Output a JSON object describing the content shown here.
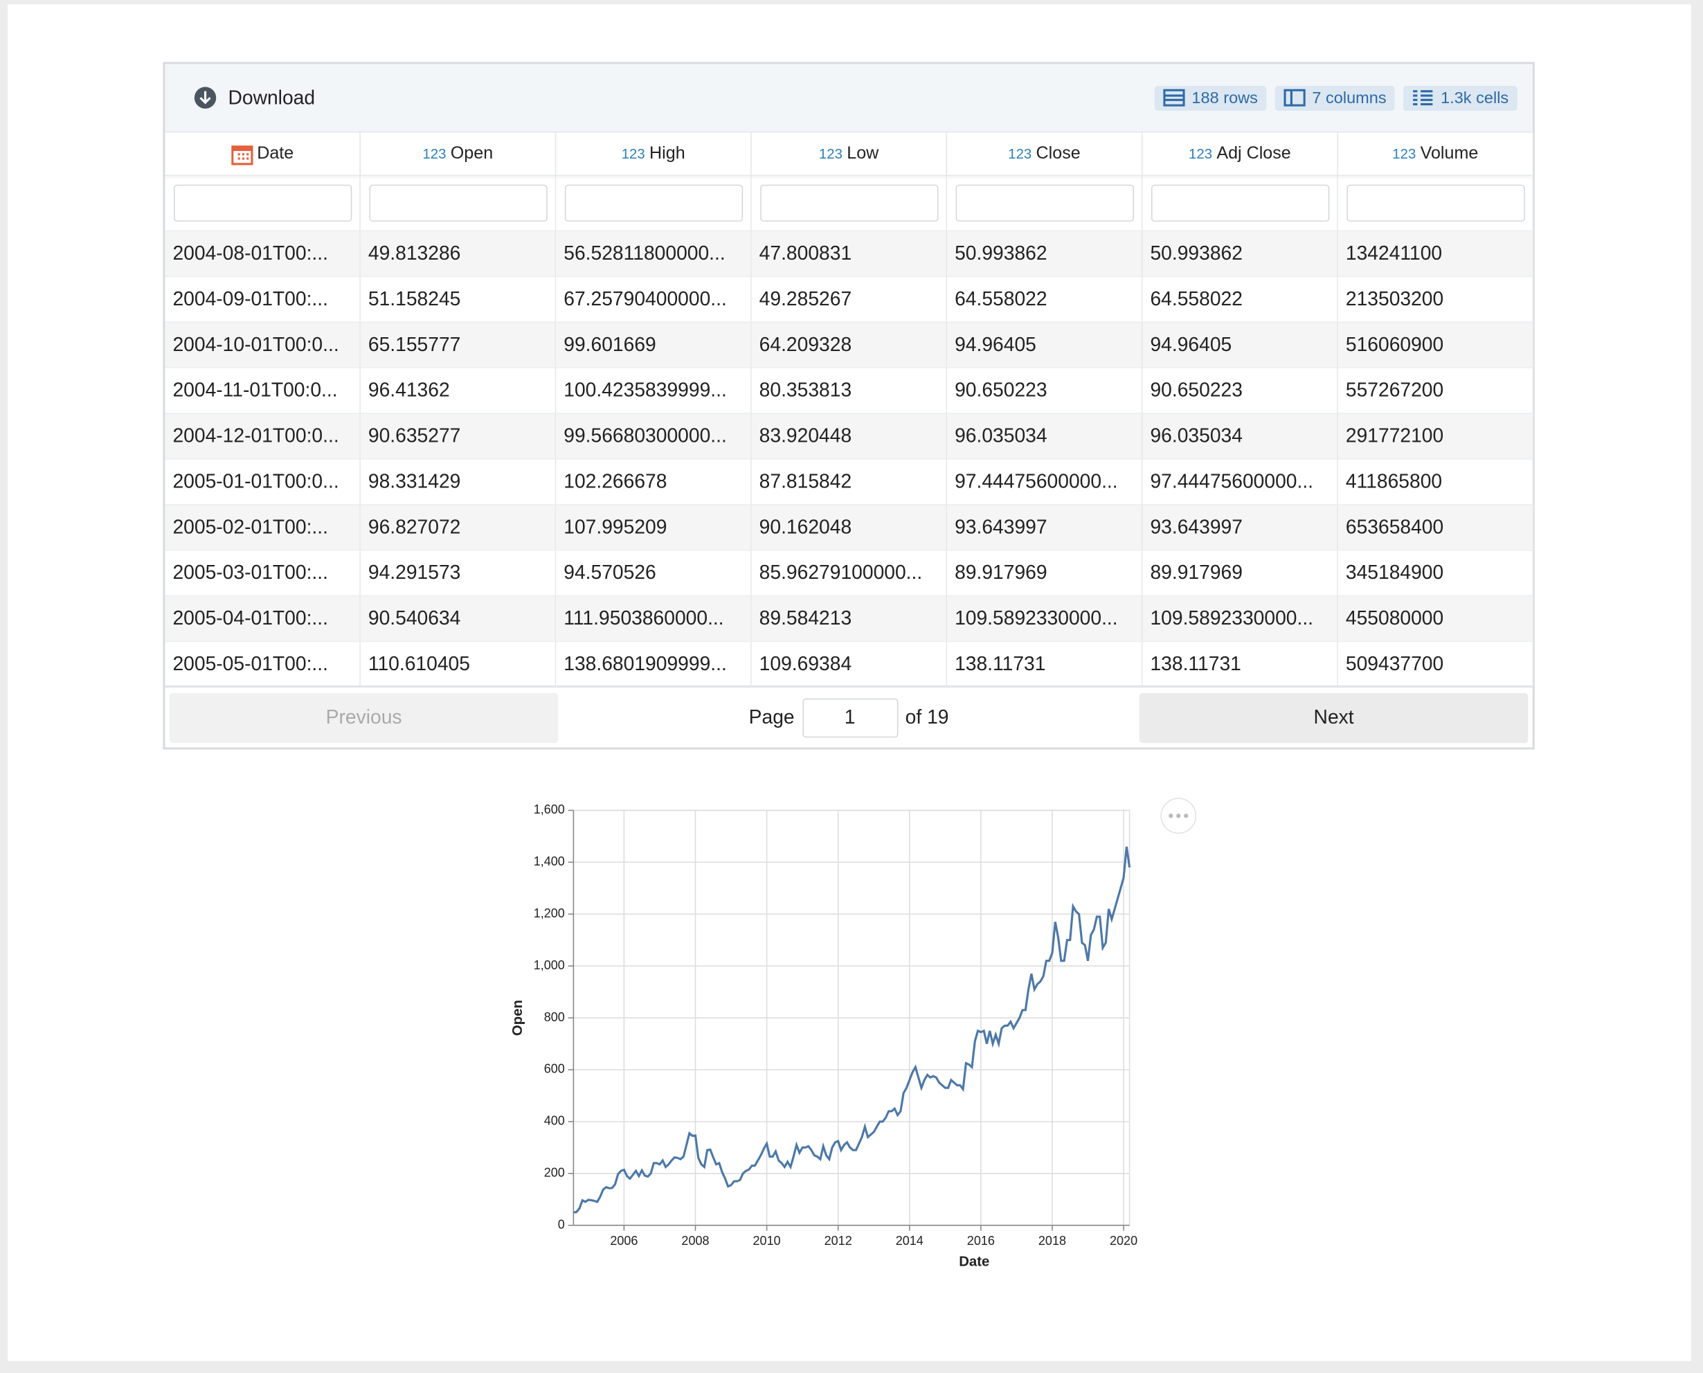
{
  "toolbar": {
    "download": "Download",
    "rows": "188 rows",
    "columns": "7 columns",
    "cells": "1.3k cells"
  },
  "table": {
    "number_icon": "123",
    "columns": [
      "Date",
      "Open",
      "High",
      "Low",
      "Close",
      "Adj Close",
      "Volume"
    ],
    "rows": [
      [
        "2004-08-01T00:...",
        "49.813286",
        "56.52811800000...",
        "47.800831",
        "50.993862",
        "50.993862",
        "134241100"
      ],
      [
        "2004-09-01T00:...",
        "51.158245",
        "67.25790400000...",
        "49.285267",
        "64.558022",
        "64.558022",
        "213503200"
      ],
      [
        "2004-10-01T00:0...",
        "65.155777",
        "99.601669",
        "64.209328",
        "94.96405",
        "94.96405",
        "516060900"
      ],
      [
        "2004-11-01T00:0...",
        "96.41362",
        "100.4235839999...",
        "80.353813",
        "90.650223",
        "90.650223",
        "557267200"
      ],
      [
        "2004-12-01T00:0...",
        "90.635277",
        "99.56680300000...",
        "83.920448",
        "96.035034",
        "96.035034",
        "291772100"
      ],
      [
        "2005-01-01T00:0...",
        "98.331429",
        "102.266678",
        "87.815842",
        "97.44475600000...",
        "97.44475600000...",
        "411865800"
      ],
      [
        "2005-02-01T00:...",
        "96.827072",
        "107.995209",
        "90.162048",
        "93.643997",
        "93.643997",
        "653658400"
      ],
      [
        "2005-03-01T00:...",
        "94.291573",
        "94.570526",
        "85.96279100000...",
        "89.917969",
        "89.917969",
        "345184900"
      ],
      [
        "2005-04-01T00:...",
        "90.540634",
        "111.9503860000...",
        "89.584213",
        "109.5892330000...",
        "109.5892330000...",
        "455080000"
      ],
      [
        "2005-05-01T00:...",
        "110.610405",
        "138.6801909999...",
        "109.69384",
        "138.11731",
        "138.11731",
        "509437700"
      ]
    ]
  },
  "pagination": {
    "previous": "Previous",
    "page_label": "Page",
    "page": 1,
    "of": "of 19",
    "next": "Next"
  },
  "chart_data": {
    "type": "line",
    "xlabel": "Date",
    "ylabel": "Open",
    "color": "#4c78a8",
    "grid": true,
    "x": [
      "2004-08",
      "2004-09",
      "2004-10",
      "2004-11",
      "2004-12",
      "2005-01",
      "2005-02",
      "2005-03",
      "2005-04",
      "2005-05",
      "2005-06",
      "2005-07",
      "2005-08",
      "2005-09",
      "2005-10",
      "2005-11",
      "2005-12",
      "2006-01",
      "2006-02",
      "2006-03",
      "2006-04",
      "2006-05",
      "2006-06",
      "2006-07",
      "2006-08",
      "2006-09",
      "2006-10",
      "2006-11",
      "2006-12",
      "2007-01",
      "2007-02",
      "2007-03",
      "2007-04",
      "2007-05",
      "2007-06",
      "2007-07",
      "2007-08",
      "2007-09",
      "2007-10",
      "2007-11",
      "2007-12",
      "2008-01",
      "2008-02",
      "2008-03",
      "2008-04",
      "2008-05",
      "2008-06",
      "2008-07",
      "2008-08",
      "2008-09",
      "2008-10",
      "2008-11",
      "2008-12",
      "2009-01",
      "2009-02",
      "2009-03",
      "2009-04",
      "2009-05",
      "2009-06",
      "2009-07",
      "2009-08",
      "2009-09",
      "2009-10",
      "2009-11",
      "2009-12",
      "2010-01",
      "2010-02",
      "2010-03",
      "2010-04",
      "2010-05",
      "2010-06",
      "2010-07",
      "2010-08",
      "2010-09",
      "2010-10",
      "2010-11",
      "2010-12",
      "2011-01",
      "2011-02",
      "2011-03",
      "2011-04",
      "2011-05",
      "2011-06",
      "2011-07",
      "2011-08",
      "2011-09",
      "2011-10",
      "2011-11",
      "2011-12",
      "2012-01",
      "2012-02",
      "2012-03",
      "2012-04",
      "2012-05",
      "2012-06",
      "2012-07",
      "2012-08",
      "2012-09",
      "2012-10",
      "2012-11",
      "2012-12",
      "2013-01",
      "2013-02",
      "2013-03",
      "2013-04",
      "2013-05",
      "2013-06",
      "2013-07",
      "2013-08",
      "2013-09",
      "2013-10",
      "2013-11",
      "2013-12",
      "2014-01",
      "2014-02",
      "2014-03",
      "2014-04",
      "2014-05",
      "2014-06",
      "2014-07",
      "2014-08",
      "2014-09",
      "2014-10",
      "2014-11",
      "2014-12",
      "2015-01",
      "2015-02",
      "2015-03",
      "2015-04",
      "2015-05",
      "2015-06",
      "2015-07",
      "2015-08",
      "2015-09",
      "2015-10",
      "2015-11",
      "2015-12",
      "2016-01",
      "2016-02",
      "2016-03",
      "2016-04",
      "2016-05",
      "2016-06",
      "2016-07",
      "2016-08",
      "2016-09",
      "2016-10",
      "2016-11",
      "2016-12",
      "2017-01",
      "2017-02",
      "2017-03",
      "2017-04",
      "2017-05",
      "2017-06",
      "2017-07",
      "2017-08",
      "2017-09",
      "2017-10",
      "2017-11",
      "2017-12",
      "2018-01",
      "2018-02",
      "2018-03",
      "2018-04",
      "2018-05",
      "2018-06",
      "2018-07",
      "2018-08",
      "2018-09",
      "2018-10",
      "2018-11",
      "2018-12",
      "2019-01",
      "2019-02",
      "2019-03",
      "2019-04",
      "2019-05",
      "2019-06",
      "2019-07",
      "2019-08",
      "2019-09",
      "2019-10",
      "2019-11",
      "2019-12",
      "2020-01",
      "2020-02",
      "2020-03"
    ],
    "values": [
      49.8,
      51.2,
      65.2,
      96.4,
      90.6,
      98.3,
      96.8,
      94.3,
      90.5,
      110.6,
      138,
      147,
      143,
      144,
      158,
      198,
      210,
      214,
      190,
      180,
      195,
      210,
      190,
      212,
      192,
      188,
      200,
      240,
      240,
      235,
      250,
      225,
      235,
      250,
      262,
      260,
      255,
      265,
      310,
      355,
      345,
      346,
      260,
      235,
      225,
      290,
      292,
      262,
      235,
      240,
      205,
      180,
      150,
      155,
      170,
      170,
      175,
      200,
      210,
      215,
      230,
      230,
      250,
      270,
      295,
      315,
      265,
      265,
      285,
      250,
      240,
      225,
      245,
      225,
      265,
      310,
      280,
      300,
      300,
      305,
      290,
      270,
      265,
      255,
      305,
      270,
      255,
      300,
      320,
      325,
      290,
      310,
      320,
      300,
      290,
      290,
      315,
      340,
      380,
      340,
      350,
      360,
      380,
      400,
      400,
      415,
      440,
      440,
      450,
      425,
      440,
      510,
      530,
      560,
      590,
      610,
      570,
      530,
      560,
      580,
      570,
      575,
      570,
      550,
      540,
      530,
      530,
      560,
      550,
      540,
      540,
      525,
      625,
      620,
      610,
      710,
      750,
      745,
      750,
      700,
      750,
      700,
      735,
      700,
      760,
      770,
      770,
      785,
      760,
      780,
      800,
      830,
      830,
      910,
      970,
      910,
      930,
      940,
      960,
      1020,
      1020,
      1050,
      1170,
      1110,
      1020,
      1020,
      1100,
      1100,
      1230,
      1210,
      1200,
      1090,
      1080,
      1020,
      1120,
      1140,
      1190,
      1190,
      1070,
      1090,
      1220,
      1180,
      1220,
      1260,
      1300,
      1340,
      1460,
      1380
    ],
    "xlim": [
      "2004-08",
      "2020-03"
    ],
    "xticks": [
      2006,
      2008,
      2010,
      2012,
      2014,
      2016,
      2018,
      2020
    ],
    "ylim": [
      0,
      1600
    ],
    "yticks": [
      0,
      200,
      400,
      600,
      800,
      {
        "value": 1000,
        "label": "1,000"
      },
      {
        "value": 1200,
        "label": "1,200"
      },
      {
        "value": 1400,
        "label": "1,400"
      },
      {
        "value": 1600,
        "label": "1,600"
      }
    ]
  }
}
